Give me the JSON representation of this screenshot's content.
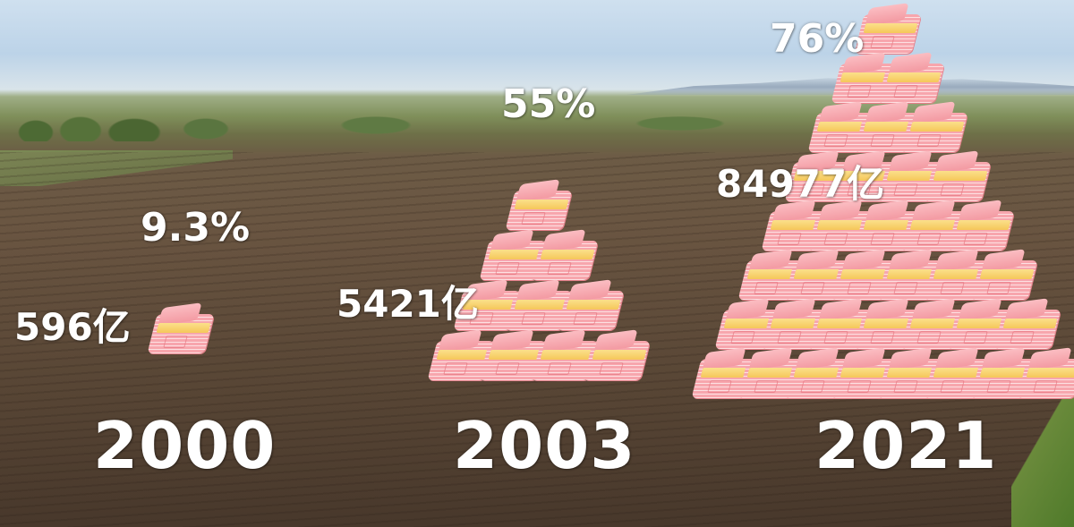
{
  "groups": [
    {
      "year": "2000",
      "percent": "9.3%",
      "amount": "596亿"
    },
    {
      "year": "2003",
      "percent": "55%",
      "amount": "5421亿"
    },
    {
      "year": "2021",
      "percent": "76%",
      "amount": "84977亿"
    }
  ],
  "colors": {
    "bundle": "#f7a6ad",
    "band": "#f5c75a",
    "text": "#ffffff"
  },
  "icon": "money-bundle-icon"
}
